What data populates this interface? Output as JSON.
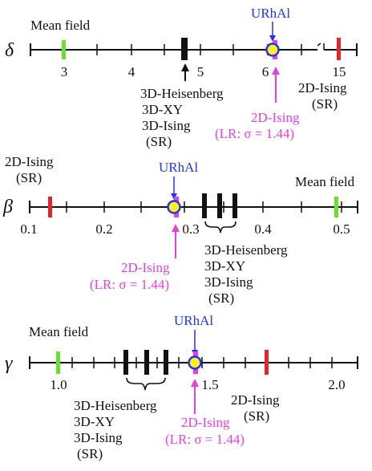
{
  "colors": {
    "axis": "#111111",
    "mean_field": "#66e22a",
    "sr_2d_ising": "#e8232a",
    "lr_2d_ising": "#e43fe0",
    "urhal": "#2233ee",
    "urhal_marker_fill": "#ffee22",
    "sr_3d_bars": "#111111"
  },
  "panels": {
    "delta": {
      "symbol": "δ",
      "ticks": [
        "3",
        "4",
        "5",
        "6",
        "15"
      ],
      "mean_field_label": "Mean field",
      "urhal_label": "URhAl",
      "sr2d_label": [
        "2D-Ising",
        "(SR)"
      ],
      "lr2d_label": [
        "2D-Ising",
        "(LR: σ = 1.44)"
      ],
      "sr3d_label": [
        "3D-Heisenberg",
        "3D-XY",
        "3D-Ising",
        "(SR)"
      ]
    },
    "beta": {
      "symbol": "β",
      "ticks": [
        "0.1",
        "0.2",
        "0.3",
        "0.4",
        "0.5"
      ],
      "mean_field_label": "Mean field",
      "urhal_label": "URhAl",
      "sr2d_label": [
        "2D-Ising",
        "(SR)"
      ],
      "lr2d_label": [
        "2D-Ising",
        "(LR: σ = 1.44)"
      ],
      "sr3d_label": [
        "3D-Heisenberg",
        "3D-XY",
        "3D-Ising",
        "(SR)"
      ]
    },
    "gamma": {
      "symbol": "γ",
      "ticks": [
        "1.0",
        "1.5",
        "2.0"
      ],
      "mean_field_label": "Mean field",
      "urhal_label": "URhAl",
      "sr2d_label": [
        "2D-Ising",
        "(SR)"
      ],
      "lr2d_label": [
        "2D-Ising",
        "(LR: σ = 1.44)"
      ],
      "sr3d_label": [
        "3D-Heisenberg",
        "3D-XY",
        "3D-Ising",
        "(SR)"
      ]
    }
  }
}
